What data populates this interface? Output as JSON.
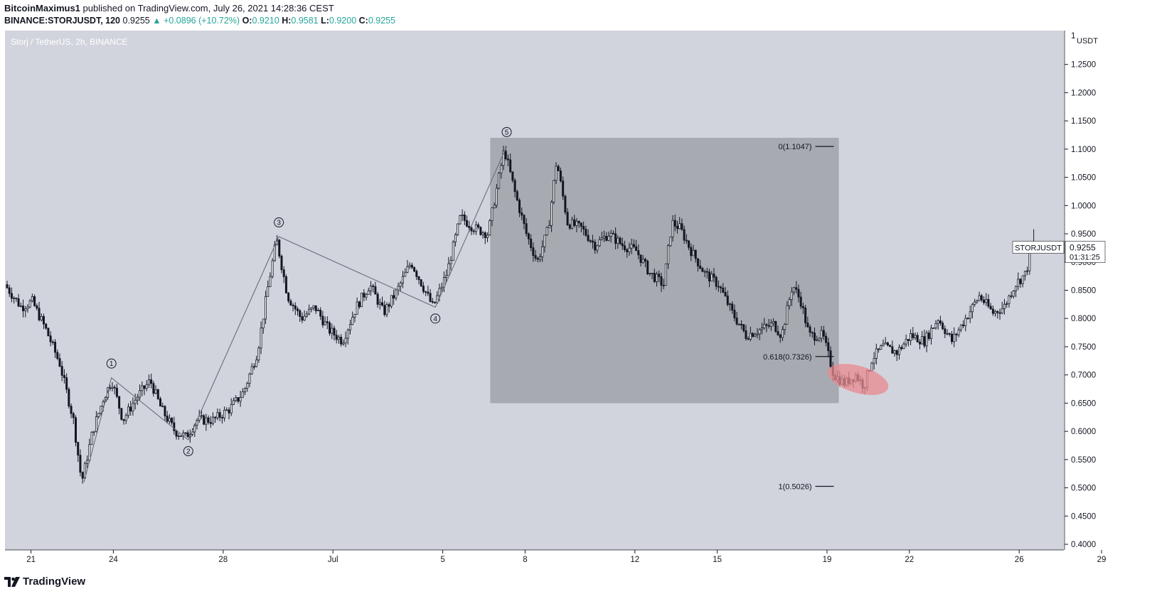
{
  "header": {
    "author": "BitcoinMaximus1",
    "published": " published on TradingView.com, July 26, 2021 14:28:36 CEST",
    "symbol_line": "BINANCE:STORJUSDT, 120",
    "last": "0.9255",
    "change": "▲ +0.0896 (+10.72%)",
    "o_label": "O:",
    "o_value": "0.9210",
    "h_label": "H:",
    "h_value": "0.9581",
    "l_label": "L:",
    "l_value": "0.9200",
    "c_label": "C:",
    "c_value": "0.9255"
  },
  "chart_title": "Storj / TetherUS, 2h, BINANCE",
  "brand": "TradingView",
  "colors": {
    "plot_bg": "#d1d4dc",
    "box": "#a5a8ae",
    "candle": "#131722",
    "highlight": "#e88a8f",
    "up": "#26a69a"
  },
  "chart_data": {
    "type": "candlestick",
    "currency_label": "USDT",
    "ylim": [
      0.39,
      1.31
    ],
    "y_ticks": [
      "1.2500",
      "1.2000",
      "1.1500",
      "1.1000",
      "1.0500",
      "1.0000",
      "0.9500",
      "0.9000",
      "0.8500",
      "0.8000",
      "0.7500",
      "0.7000",
      "0.6500",
      "0.6000",
      "0.5500",
      "0.5000",
      "0.4500",
      "0.4000"
    ],
    "x_ticks": [
      "21",
      "24",
      "28",
      "Jul",
      "5",
      "8",
      "12",
      "15",
      "19",
      "22",
      "26",
      "29"
    ],
    "price_tag": {
      "symbol": "STORJUSDT",
      "price": "0.9255",
      "countdown": "01:31:25"
    },
    "waves": [
      {
        "label": "1",
        "day": 23.8,
        "price": 0.695
      },
      {
        "label": "2",
        "day": 26.6,
        "price": 0.585
      },
      {
        "label": "3",
        "day": 29.9,
        "price": 0.945
      },
      {
        "label": "4",
        "day": 35.6,
        "price": 0.82
      },
      {
        "label": "5",
        "day": 38.2,
        "price": 1.105
      }
    ],
    "wave_start": {
      "day": 22.8,
      "price": 0.51
    },
    "fib_levels": [
      {
        "label": "0(1.1047)",
        "price": 1.1047
      },
      {
        "label": "0.618(0.7326)",
        "price": 0.7326
      },
      {
        "label": "1(0.5026)",
        "price": 0.5026
      }
    ],
    "fib_box": {
      "day_start": 37.6,
      "day_end": 50.3,
      "price_top": 1.12,
      "price_bottom": 0.65
    },
    "highlight": {
      "day": 51.0,
      "price": 0.692
    },
    "price_path": [
      [
        20.0,
        0.86
      ],
      [
        20.6,
        0.82
      ],
      [
        21.0,
        0.83
      ],
      [
        21.5,
        0.78
      ],
      [
        22.0,
        0.72
      ],
      [
        22.5,
        0.62
      ],
      [
        22.8,
        0.51
      ],
      [
        23.2,
        0.6
      ],
      [
        23.6,
        0.66
      ],
      [
        23.9,
        0.69
      ],
      [
        24.3,
        0.62
      ],
      [
        24.8,
        0.66
      ],
      [
        25.3,
        0.69
      ],
      [
        25.7,
        0.64
      ],
      [
        26.2,
        0.6
      ],
      [
        26.6,
        0.59
      ],
      [
        27.0,
        0.62
      ],
      [
        27.6,
        0.62
      ],
      [
        28.2,
        0.64
      ],
      [
        28.7,
        0.67
      ],
      [
        29.2,
        0.74
      ],
      [
        29.6,
        0.86
      ],
      [
        29.9,
        0.94
      ],
      [
        30.3,
        0.84
      ],
      [
        30.8,
        0.8
      ],
      [
        31.3,
        0.82
      ],
      [
        31.8,
        0.78
      ],
      [
        32.3,
        0.76
      ],
      [
        32.8,
        0.82
      ],
      [
        33.3,
        0.86
      ],
      [
        33.8,
        0.81
      ],
      [
        34.3,
        0.85
      ],
      [
        34.8,
        0.9
      ],
      [
        35.2,
        0.86
      ],
      [
        35.6,
        0.82
      ],
      [
        36.1,
        0.88
      ],
      [
        36.6,
        0.98
      ],
      [
        37.1,
        0.96
      ],
      [
        37.6,
        0.95
      ],
      [
        38.2,
        1.1
      ],
      [
        38.6,
        1.02
      ],
      [
        39.0,
        0.95
      ],
      [
        39.4,
        0.9
      ],
      [
        39.8,
        0.96
      ],
      [
        40.1,
        1.08
      ],
      [
        40.5,
        0.97
      ],
      [
        41.0,
        0.96
      ],
      [
        41.5,
        0.93
      ],
      [
        42.0,
        0.95
      ],
      [
        42.5,
        0.93
      ],
      [
        43.0,
        0.92
      ],
      [
        43.5,
        0.88
      ],
      [
        44.0,
        0.86
      ],
      [
        44.3,
        0.97
      ],
      [
        44.6,
        0.96
      ],
      [
        45.0,
        0.92
      ],
      [
        45.5,
        0.88
      ],
      [
        46.0,
        0.86
      ],
      [
        46.5,
        0.81
      ],
      [
        47.0,
        0.77
      ],
      [
        47.5,
        0.78
      ],
      [
        48.0,
        0.79
      ],
      [
        48.3,
        0.77
      ],
      [
        48.7,
        0.86
      ],
      [
        49.0,
        0.83
      ],
      [
        49.3,
        0.77
      ],
      [
        49.8,
        0.77
      ],
      [
        50.2,
        0.7
      ],
      [
        50.6,
        0.685
      ],
      [
        51.0,
        0.7
      ],
      [
        51.3,
        0.68
      ],
      [
        51.6,
        0.73
      ],
      [
        52.0,
        0.75
      ],
      [
        52.5,
        0.74
      ],
      [
        53.0,
        0.77
      ],
      [
        53.5,
        0.76
      ],
      [
        54.0,
        0.8
      ],
      [
        54.5,
        0.76
      ],
      [
        55.0,
        0.8
      ],
      [
        55.5,
        0.84
      ],
      [
        56.0,
        0.81
      ],
      [
        56.4,
        0.82
      ],
      [
        56.8,
        0.86
      ],
      [
        57.2,
        0.88
      ],
      [
        57.4,
        0.925
      ]
    ]
  }
}
